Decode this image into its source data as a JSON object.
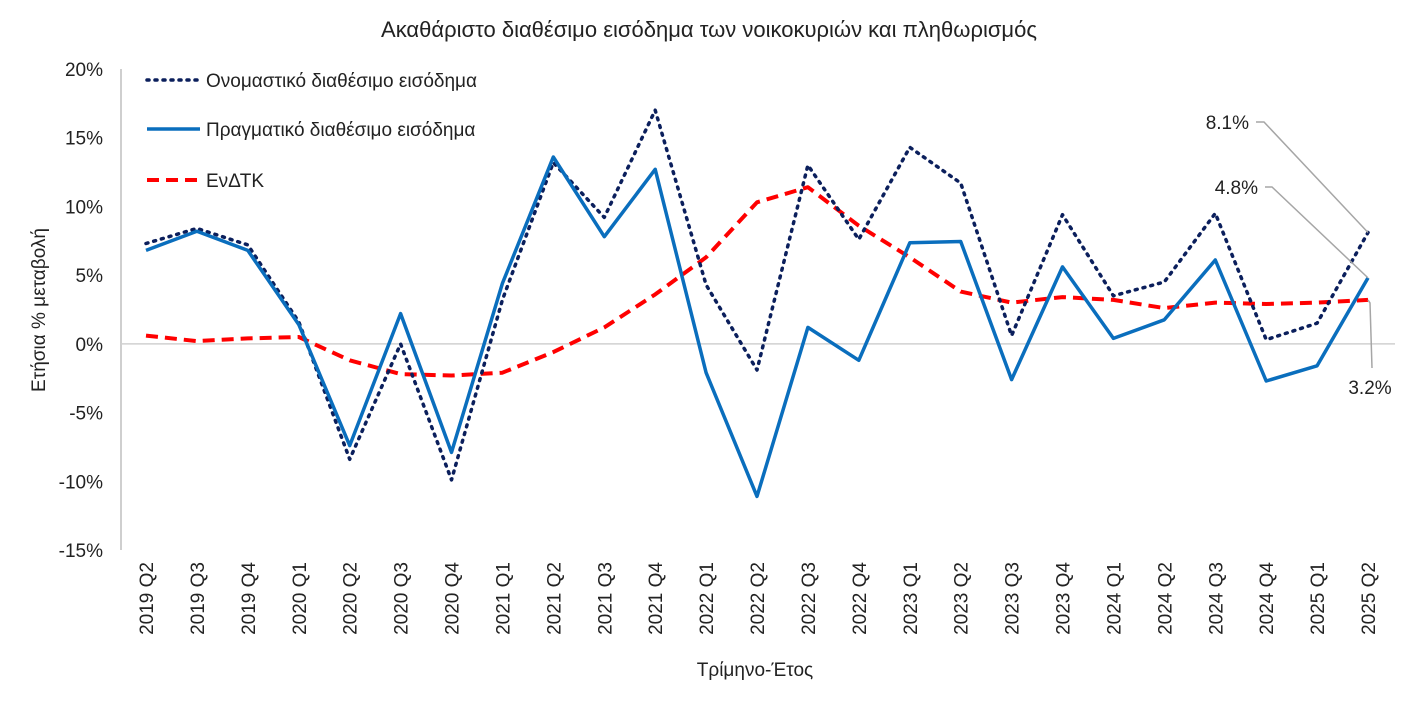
{
  "chart_data": {
    "type": "line",
    "title": "Ακαθάριστο διαθέσιμο εισόδημα των νοικοκυριών και πληθωρισμός",
    "xlabel": "Τρίμηνο-Έτος",
    "ylabel": "Ετήσια % μεταβολή",
    "ylim": [
      -15,
      20
    ],
    "yticks": [
      -15,
      -10,
      -5,
      0,
      5,
      10,
      15,
      20
    ],
    "ytick_labels": [
      "-15%",
      "-10%",
      "-5%",
      "0%",
      "5%",
      "10%",
      "15%",
      "20%"
    ],
    "grid": false,
    "legend_position": "top-left",
    "categories": [
      "2019 Q2",
      "2019 Q3",
      "2019 Q4",
      "2020 Q1",
      "2020 Q2",
      "2020 Q3",
      "2020 Q4",
      "2021 Q1",
      "2021 Q2",
      "2021 Q3",
      "2021 Q4",
      "2022 Q1",
      "2022 Q2",
      "2022 Q3",
      "2022 Q4",
      "2023 Q1",
      "2023 Q2",
      "2023 Q3",
      "2023 Q4",
      "2024 Q1",
      "2024 Q2",
      "2024 Q3",
      "2024 Q4",
      "2025 Q1",
      "2025 Q2"
    ],
    "series": [
      {
        "name": "Ονομαστικό διαθέσιμο εισόδημα",
        "color": "#0b1f5c",
        "style": "dotted",
        "values": [
          7.3,
          8.4,
          7.2,
          1.6,
          -8.4,
          0.0,
          -9.9,
          3.2,
          13.2,
          9.2,
          17.0,
          4.3,
          -1.9,
          13.0,
          7.6,
          14.3,
          11.7,
          0.6,
          9.4,
          3.5,
          4.5,
          9.5,
          0.3,
          1.5,
          8.1
        ]
      },
      {
        "name": "Πραγματικό διαθέσιμο εισόδημα",
        "color": "#0a6ebd",
        "style": "solid",
        "values": [
          6.8,
          8.2,
          6.8,
          1.4,
          -7.4,
          2.2,
          -7.9,
          4.4,
          13.6,
          7.8,
          12.7,
          -2.1,
          -11.1,
          1.2,
          -1.2,
          7.35,
          7.45,
          -2.6,
          5.6,
          0.4,
          1.75,
          6.1,
          -2.7,
          -1.6,
          4.8
        ]
      },
      {
        "name": "ΕνΔΤΚ",
        "color": "#ff0000",
        "style": "dashed",
        "values": [
          0.6,
          0.2,
          0.4,
          0.5,
          -1.2,
          -2.2,
          -2.3,
          -2.1,
          -0.6,
          1.2,
          3.6,
          6.3,
          10.3,
          11.4,
          8.6,
          6.3,
          3.8,
          3.0,
          3.4,
          3.2,
          2.6,
          3.0,
          2.9,
          3.0,
          3.2
        ]
      }
    ],
    "annotations": [
      "8.1%",
      "4.8%",
      "3.2%"
    ]
  }
}
